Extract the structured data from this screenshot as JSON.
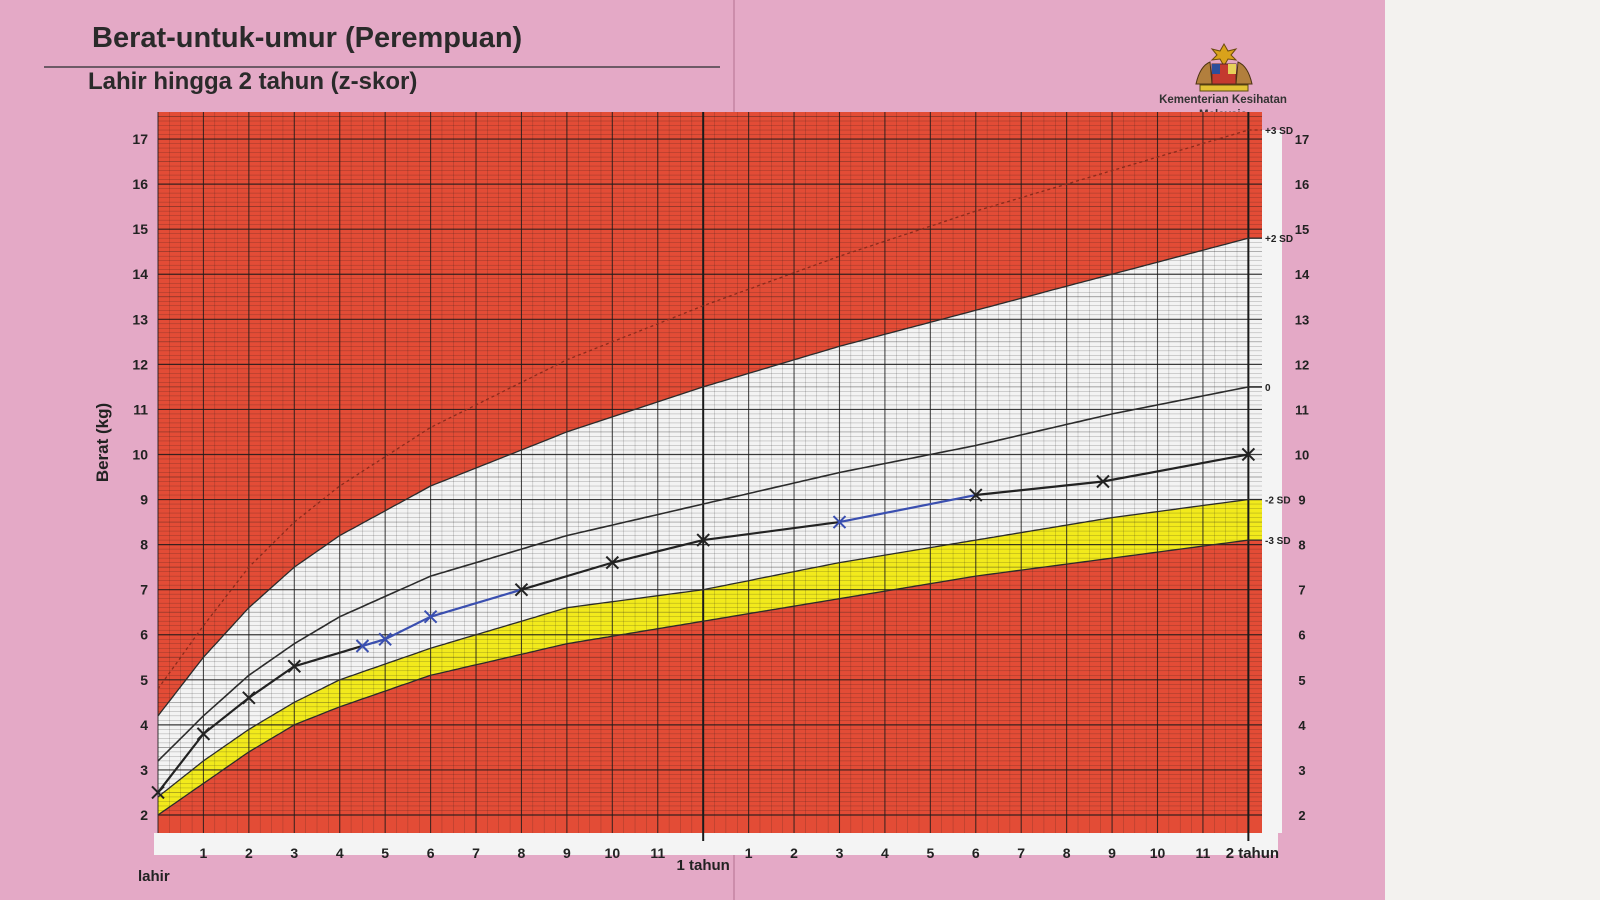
{
  "header": {
    "title": "Berat-untuk-umur (Perempuan)",
    "subtitle": "Lahir hingga 2 tahun (z-skor)"
  },
  "ministry": {
    "line1": "Kementerian Kesihatan",
    "line2": "Malaysia",
    "emblem_icon": "malaysia-coat-of-arms-icon"
  },
  "colors": {
    "page": "#e4a9c6",
    "extreme_zone": "#e34c36",
    "normal_zone": "#f3f3f3",
    "warning_zone": "#f2ea1c",
    "grid_dark": "#1a1a1a",
    "plot_blue": "#3a4fb0",
    "plot_black": "#222222"
  },
  "chart_data": {
    "type": "line",
    "ylabel": "Berat (kg)",
    "ylim": [
      1.6,
      17.6
    ],
    "xlim": [
      0,
      24.3
    ],
    "y_ticks_left": [
      2,
      3,
      4,
      5,
      6,
      7,
      8,
      9,
      10,
      11,
      12,
      13,
      14,
      15,
      16,
      17
    ],
    "y_ticks_right": [
      2,
      3,
      4,
      5,
      6,
      7,
      8,
      9,
      10,
      11,
      12,
      13,
      14,
      15,
      16,
      17
    ],
    "x_tick_labels": [
      "lahir",
      "1",
      "2",
      "3",
      "4",
      "5",
      "6",
      "7",
      "8",
      "9",
      "10",
      "11",
      "1 tahun",
      "1",
      "2",
      "3",
      "4",
      "5",
      "6",
      "7",
      "8",
      "9",
      "10",
      "11",
      "2 tahun"
    ],
    "grid": true,
    "zones": [
      {
        "name": "upper-red",
        "color": "#e34c36",
        "from": "+2 SD",
        "to": "top"
      },
      {
        "name": "white",
        "color": "#f3f3f3",
        "from": "-2 SD",
        "to": "+2 SD"
      },
      {
        "name": "yellow",
        "color": "#f2ea1c",
        "from": "-3 SD",
        "to": "-2 SD"
      },
      {
        "name": "lower-red",
        "color": "#e34c36",
        "from": "bottom",
        "to": "-3 SD"
      }
    ],
    "reference_curves": [
      {
        "name": "+3 SD",
        "x": [
          0,
          1,
          2,
          3,
          4,
          6,
          9,
          12,
          15,
          18,
          21,
          24
        ],
        "values": [
          4.8,
          6.2,
          7.5,
          8.5,
          9.3,
          10.6,
          12.1,
          13.3,
          14.4,
          15.4,
          16.3,
          17.2
        ]
      },
      {
        "name": "+2 SD",
        "x": [
          0,
          1,
          2,
          3,
          4,
          6,
          9,
          12,
          15,
          18,
          21,
          24
        ],
        "values": [
          4.2,
          5.5,
          6.6,
          7.5,
          8.2,
          9.3,
          10.5,
          11.5,
          12.4,
          13.2,
          14.0,
          14.8
        ]
      },
      {
        "name": "0",
        "x": [
          0,
          1,
          2,
          3,
          4,
          6,
          9,
          12,
          15,
          18,
          21,
          24
        ],
        "values": [
          3.2,
          4.2,
          5.1,
          5.8,
          6.4,
          7.3,
          8.2,
          8.9,
          9.6,
          10.2,
          10.9,
          11.5
        ]
      },
      {
        "name": "-2 SD",
        "x": [
          0,
          1,
          2,
          3,
          4,
          6,
          9,
          12,
          15,
          18,
          21,
          24
        ],
        "values": [
          2.4,
          3.2,
          3.9,
          4.5,
          5.0,
          5.7,
          6.6,
          7.0,
          7.6,
          8.1,
          8.6,
          9.0
        ]
      },
      {
        "name": "-3 SD",
        "x": [
          0,
          1,
          2,
          3,
          4,
          6,
          9,
          12,
          15,
          18,
          21,
          24
        ],
        "values": [
          2.0,
          2.7,
          3.4,
          4.0,
          4.4,
          5.1,
          5.8,
          6.3,
          6.8,
          7.3,
          7.7,
          8.1
        ]
      }
    ],
    "series": [
      {
        "x": [
          0,
          1,
          2,
          3,
          4.5,
          5,
          6,
          8,
          10,
          12,
          15,
          18,
          20.8,
          24
        ],
        "values": [
          2.5,
          3.8,
          4.6,
          5.3,
          5.75,
          5.9,
          6.4,
          7.0,
          7.6,
          8.1,
          8.5,
          9.1,
          9.4,
          10.0
        ],
        "segment_colors": [
          "black",
          "black",
          "black",
          "black",
          "blue",
          "blue",
          "blue",
          "black",
          "black",
          "black",
          "blue",
          "black",
          "black"
        ]
      }
    ]
  }
}
